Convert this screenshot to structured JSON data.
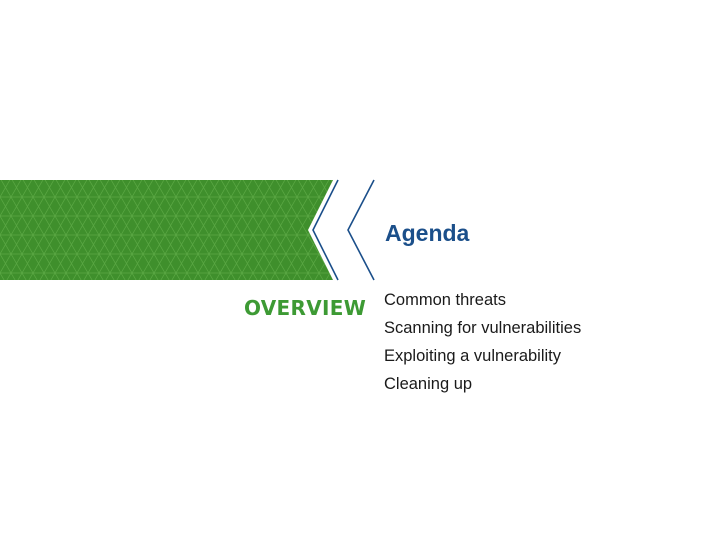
{
  "slide": {
    "section_label": "OVERVIEW",
    "title": "Agenda",
    "agenda_items": [
      "Common threats",
      "Scanning for vulnerabilities",
      "Exploiting a vulnerability",
      "Cleaning up"
    ]
  },
  "colors": {
    "banner_green": "#3f8f2c",
    "banner_pattern": "#5aa845",
    "chevron_blue": "#1b4f8a",
    "title_blue": "#1b4f8a",
    "section_green": "#3d9a34",
    "body_text": "#1a1a1a"
  },
  "icons": {
    "banner": "green-triangle-pattern-banner",
    "chevron": "double-chevron-left-icon"
  }
}
